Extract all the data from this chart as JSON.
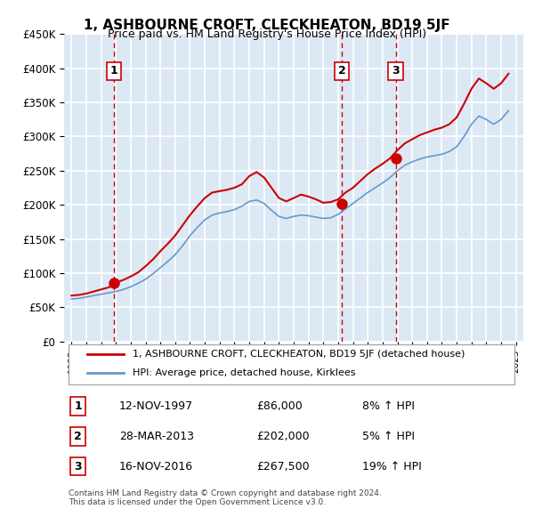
{
  "title": "1, ASHBOURNE CROFT, CLECKHEATON, BD19 5JF",
  "subtitle": "Price paid vs. HM Land Registry's House Price Index (HPI)",
  "ylabel": "",
  "xlabel": "",
  "legend_line1": "1, ASHBOURNE CROFT, CLECKHEATON, BD19 5JF (detached house)",
  "legend_line2": "HPI: Average price, detached house, Kirklees",
  "sale_points": [
    {
      "label": "1",
      "date_x": 1997.87,
      "price": 86000,
      "date_str": "12-NOV-1997",
      "price_str": "£86,000",
      "hpi_str": "8% ↑ HPI"
    },
    {
      "label": "2",
      "date_x": 2013.24,
      "price": 202000,
      "date_str": "28-MAR-2013",
      "price_str": "£202,000",
      "hpi_str": "5% ↑ HPI"
    },
    {
      "label": "3",
      "date_x": 2016.88,
      "price": 267500,
      "date_str": "16-NOV-2016",
      "price_str": "£267,500",
      "hpi_str": "19% ↑ HPI"
    }
  ],
  "ylim": [
    0,
    450000
  ],
  "xlim": [
    1994.5,
    2025.5
  ],
  "background_color": "#dce9f5",
  "plot_bg_color": "#dce9f5",
  "grid_color": "#ffffff",
  "line_color_red": "#cc0000",
  "line_color_blue": "#6699cc",
  "footer": "Contains HM Land Registry data © Crown copyright and database right 2024.\nThis data is licensed under the Open Government Licence v3.0.",
  "hpi_years": [
    1995,
    1995.5,
    1996,
    1996.5,
    1997,
    1997.5,
    1998,
    1998.5,
    1999,
    1999.5,
    2000,
    2000.5,
    2001,
    2001.5,
    2002,
    2002.5,
    2003,
    2003.5,
    2004,
    2004.5,
    2005,
    2005.5,
    2006,
    2006.5,
    2007,
    2007.5,
    2008,
    2008.5,
    2009,
    2009.5,
    2010,
    2010.5,
    2011,
    2011.5,
    2012,
    2012.5,
    2013,
    2013.5,
    2014,
    2014.5,
    2015,
    2015.5,
    2016,
    2016.5,
    2017,
    2017.5,
    2018,
    2018.5,
    2019,
    2019.5,
    2020,
    2020.5,
    2021,
    2021.5,
    2022,
    2022.5,
    2023,
    2023.5,
    2024,
    2024.5
  ],
  "hpi_values": [
    62000,
    63000,
    65000,
    67000,
    69000,
    71000,
    73000,
    76000,
    80000,
    85000,
    91000,
    99000,
    108000,
    117000,
    127000,
    140000,
    155000,
    167000,
    178000,
    185000,
    188000,
    190000,
    193000,
    198000,
    205000,
    207000,
    202000,
    192000,
    183000,
    180000,
    183000,
    185000,
    184000,
    182000,
    180000,
    181000,
    186000,
    194000,
    202000,
    210000,
    218000,
    225000,
    232000,
    240000,
    250000,
    258000,
    263000,
    267000,
    270000,
    272000,
    274000,
    278000,
    285000,
    300000,
    318000,
    330000,
    325000,
    318000,
    325000,
    338000
  ],
  "red_years": [
    1995,
    1995.5,
    1996,
    1996.5,
    1997,
    1997.5,
    1998,
    1998.5,
    1999,
    1999.5,
    2000,
    2000.5,
    2001,
    2001.5,
    2002,
    2002.5,
    2003,
    2003.5,
    2004,
    2004.5,
    2005,
    2005.5,
    2006,
    2006.5,
    2007,
    2007.5,
    2008,
    2008.5,
    2009,
    2009.5,
    2010,
    2010.5,
    2011,
    2011.5,
    2012,
    2012.5,
    2013,
    2013.5,
    2014,
    2014.5,
    2015,
    2015.5,
    2016,
    2016.5,
    2017,
    2017.5,
    2018,
    2018.5,
    2019,
    2019.5,
    2020,
    2020.5,
    2021,
    2021.5,
    2022,
    2022.5,
    2023,
    2023.5,
    2024,
    2024.5
  ],
  "red_values": [
    67000,
    68000,
    70000,
    73000,
    76000,
    79000,
    86000,
    90000,
    95000,
    101000,
    110000,
    120000,
    132000,
    143000,
    155000,
    170000,
    185000,
    198000,
    210000,
    218000,
    220000,
    222000,
    225000,
    230000,
    242000,
    248000,
    240000,
    225000,
    210000,
    205000,
    210000,
    215000,
    212000,
    208000,
    203000,
    204000,
    208000,
    218000,
    225000,
    235000,
    245000,
    253000,
    260000,
    268000,
    280000,
    290000,
    296000,
    302000,
    306000,
    310000,
    313000,
    318000,
    328000,
    348000,
    370000,
    385000,
    378000,
    370000,
    378000,
    392000
  ]
}
